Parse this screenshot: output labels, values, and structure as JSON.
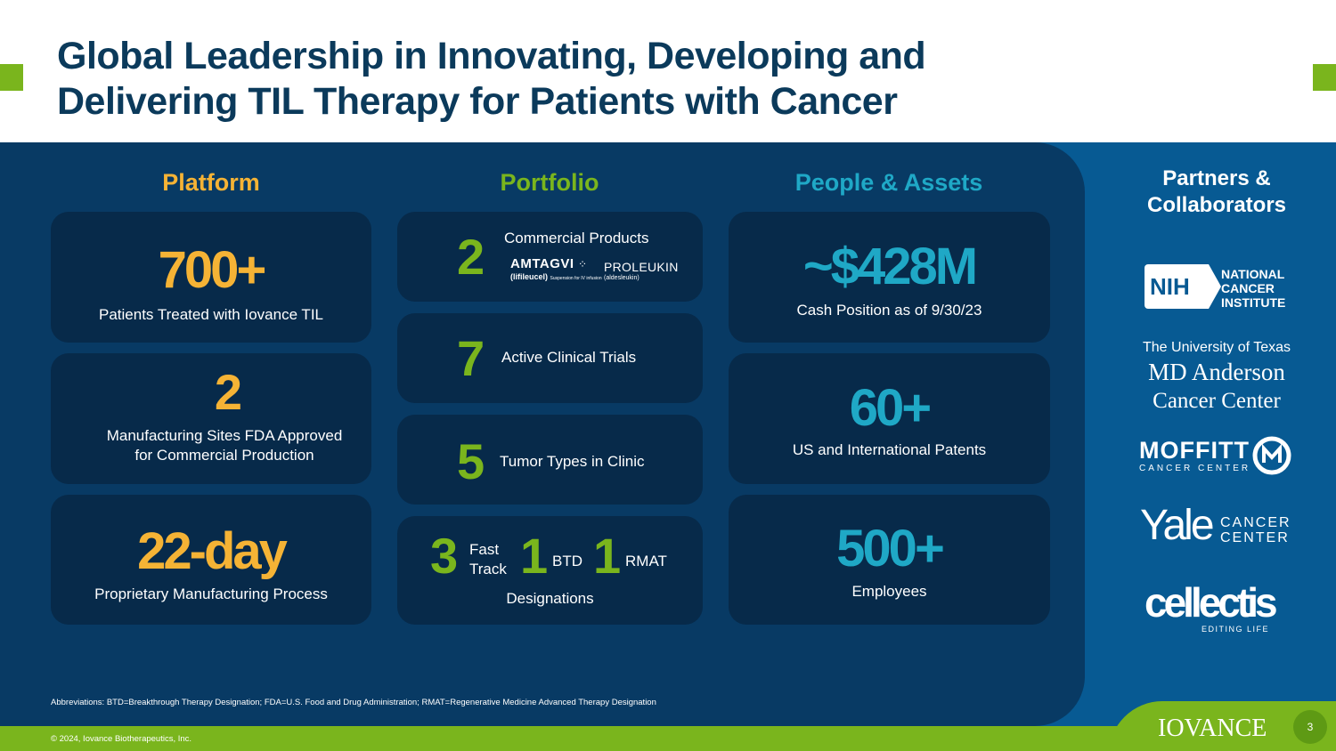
{
  "title": {
    "line1": "Global Leadership in Innovating, Developing and",
    "line2": "Delivering TIL Therapy for Patients with Cancer"
  },
  "colors": {
    "navy": "#083a64",
    "card": "#072a4a",
    "orange": "#f5b335",
    "green": "#7ab51d",
    "teal": "#1fa8c6",
    "title": "#0b3a5b"
  },
  "platform": {
    "heading": "Platform",
    "cards": [
      {
        "value": "700+",
        "label": "Patients Treated with Iovance TIL"
      },
      {
        "value": "2",
        "label_line1": "Manufacturing  Sites FDA Approved",
        "label_line2": "for Commercial Production"
      },
      {
        "value": "22-day",
        "label": "Proprietary Manufacturing Process"
      }
    ]
  },
  "portfolio": {
    "heading": "Portfolio",
    "commercial": {
      "value": "2",
      "label": "Commercial Products",
      "product1": "AMTAGVI",
      "product1_sub": "(lifileucel)",
      "product1_fine": "Suspension for IV infusion",
      "product2": "PROLEUKIN",
      "product2_sub": "(aldesleukin)"
    },
    "trials": {
      "value": "7",
      "label": "Active Clinical Trials"
    },
    "tumors": {
      "value": "5",
      "label": "Tumor Types in Clinic"
    },
    "designations": {
      "fast_value": "3",
      "fast_line1": "Fast",
      "fast_line2": "Track",
      "btd_value": "1",
      "btd_label": "BTD",
      "rmat_value": "1",
      "rmat_label": "RMAT",
      "caption": "Designations"
    }
  },
  "people": {
    "heading": "People & Assets",
    "cards": [
      {
        "value": "~$428M",
        "label": "Cash Position as of 9/30/23"
      },
      {
        "value": "60+",
        "label": "US and International Patents"
      },
      {
        "value": "500+",
        "label": "Employees"
      }
    ]
  },
  "partners": {
    "heading_line1": "Partners &",
    "heading_line2": "Collaborators",
    "nih": {
      "mark": "NIH",
      "line1": "NATIONAL",
      "line2": "CANCER",
      "line3": "INSTITUTE"
    },
    "mdanderson": {
      "line1": "The University of Texas",
      "line2": "MD Anderson",
      "line3": "Cancer Center"
    },
    "moffitt": {
      "name": "MOFFITT",
      "sub": "CANCER CENTER"
    },
    "yale": {
      "name": "Yale",
      "line1": "CANCER",
      "line2": "CENTER"
    },
    "cellectis": {
      "name": "cellectis",
      "sub": "EDITING LIFE"
    }
  },
  "abbreviations": "Abbreviations: BTD=Breakthrough Therapy Designation; FDA=U.S. Food and Drug Administration; RMAT=Regenerative Medicine Advanced Therapy Designation",
  "footer": {
    "copyright": "© 2024, Iovance Biotherapeutics, Inc.",
    "logo": "IOVANCE",
    "page": "3"
  }
}
